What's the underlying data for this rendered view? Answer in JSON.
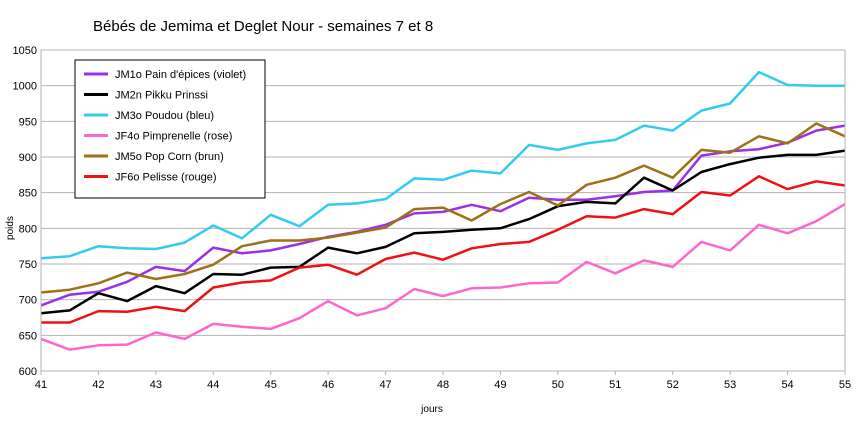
{
  "chart_data": {
    "type": "line",
    "title": "Bébés de Jemima et Deglet Nour - semaines 7 et 8",
    "xlabel": "jours",
    "ylabel": "poids",
    "xlim": [
      41,
      55
    ],
    "ylim": [
      600,
      1050
    ],
    "xticks": [
      41,
      42,
      43,
      44,
      45,
      46,
      47,
      48,
      49,
      50,
      51,
      52,
      53,
      54,
      55
    ],
    "yticks": [
      600,
      650,
      700,
      750,
      800,
      850,
      900,
      950,
      1000,
      1050
    ],
    "grid": true,
    "legend_position": "top-left",
    "x": [
      41,
      41.5,
      42,
      42.5,
      43,
      43.5,
      44,
      44.5,
      45,
      45.5,
      46,
      46.5,
      47,
      47.5,
      48,
      48.5,
      49,
      49.5,
      50,
      50.5,
      51,
      51.5,
      52,
      52.5,
      53,
      53.5,
      54,
      54.5,
      55
    ],
    "series": [
      {
        "name": "JM1o Pain d'épices (violet)",
        "color": "#9b30e6",
        "values": [
          692,
          707,
          711,
          725,
          746,
          740,
          773,
          765,
          769,
          778,
          788,
          795,
          805,
          821,
          823,
          833,
          824,
          843,
          840,
          840,
          845,
          851,
          853,
          902,
          908,
          911,
          920,
          937,
          944
        ]
      },
      {
        "name": "JM2n Pikku Prinssi",
        "color": "#000000",
        "values": [
          681,
          685,
          709,
          698,
          719,
          709,
          736,
          735,
          745,
          746,
          773,
          765,
          774,
          793,
          795,
          798,
          800,
          813,
          831,
          837,
          835,
          871,
          853,
          879,
          890,
          899,
          903,
          903,
          909
        ]
      },
      {
        "name": "JM3o Poudou (bleu)",
        "color": "#33ccf0",
        "values": [
          758,
          761,
          775,
          772,
          771,
          780,
          804,
          786,
          819,
          803,
          833,
          835,
          841,
          870,
          868,
          881,
          877,
          917,
          910,
          919,
          924,
          944,
          937,
          965,
          975,
          1019,
          1001,
          1000,
          1000
        ]
      },
      {
        "name": "JF4o Pimprenelle (rose)",
        "color": "#ff66cc",
        "values": [
          645,
          630,
          636,
          637,
          654,
          645,
          666,
          662,
          659,
          674,
          698,
          678,
          688,
          715,
          705,
          716,
          717,
          723,
          724,
          753,
          737,
          755,
          746,
          781,
          769,
          805,
          793,
          810,
          834
        ]
      },
      {
        "name": "JM5o Pop Corn (brun)",
        "color": "#9c7214",
        "values": [
          710,
          714,
          723,
          738,
          729,
          736,
          749,
          775,
          783,
          783,
          787,
          794,
          801,
          827,
          829,
          811,
          834,
          851,
          832,
          861,
          871,
          888,
          871,
          910,
          906,
          929,
          919,
          947,
          929
        ]
      },
      {
        "name": "JF6o Pelisse (rouge)",
        "color": "#ee1111",
        "values": [
          668,
          668,
          684,
          683,
          690,
          684,
          717,
          724,
          727,
          745,
          749,
          735,
          757,
          766,
          756,
          772,
          778,
          781,
          798,
          817,
          815,
          827,
          820,
          851,
          846,
          873,
          855,
          866,
          860
        ]
      }
    ]
  }
}
